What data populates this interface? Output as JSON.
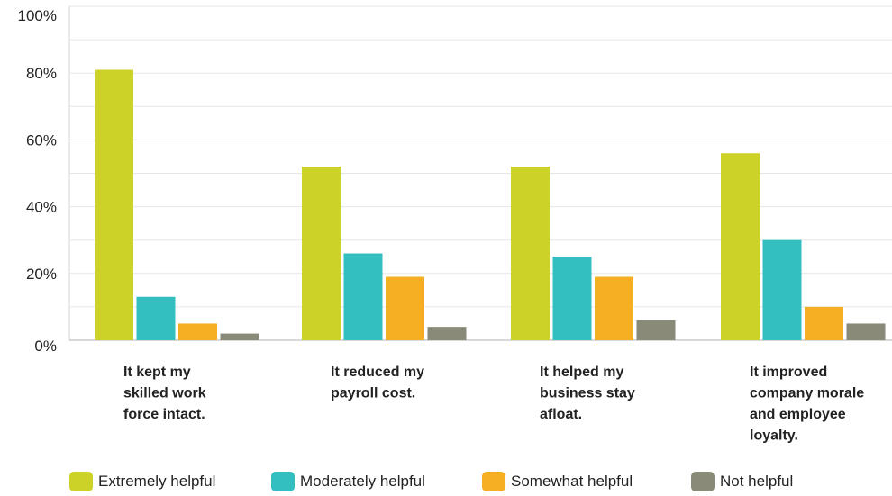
{
  "chart_data": {
    "type": "bar",
    "categories": [
      [
        "It kept my",
        "skilled work",
        "force intact."
      ],
      [
        "It reduced my",
        "payroll cost."
      ],
      [
        "It helped my",
        "business stay",
        "afloat."
      ],
      [
        "It improved",
        "company morale",
        "and employee",
        "loyalty."
      ]
    ],
    "series": [
      {
        "name": "Extremely helpful",
        "color": "#cdd228",
        "values": [
          81,
          52,
          52,
          56
        ]
      },
      {
        "name": "Moderately helpful",
        "color": "#33bec0",
        "values": [
          13,
          26,
          25,
          30
        ]
      },
      {
        "name": "Somewhat helpful",
        "color": "#f6ae23",
        "values": [
          5,
          19,
          19,
          10
        ]
      },
      {
        "name": "Not helpful",
        "color": "#8a8a78",
        "values": [
          2,
          4,
          6,
          5
        ]
      }
    ],
    "yticks": [
      "0%",
      "20%",
      "40%",
      "60%",
      "80%",
      "100%"
    ],
    "ylim": [
      0,
      100
    ],
    "grid": true,
    "legend_position": "bottom"
  }
}
